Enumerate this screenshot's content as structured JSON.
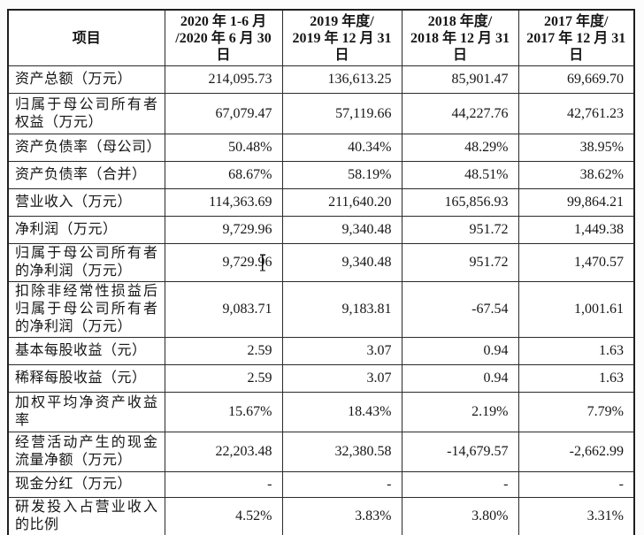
{
  "colors": {
    "page_background": "#fcfcfc",
    "table_background": "#ffffff",
    "border": "#2a2a2a",
    "text": "#161616"
  },
  "table": {
    "header": [
      "项目",
      "2020 年 1-6 月\n/2020 年 6 月 30\n日",
      "2019 年度/\n2019 年 12 月 31\n日",
      "2018 年度/\n2018 年 12 月 31\n日",
      "2017 年度/\n2017 年 12 月 31\n日"
    ],
    "rows": [
      {
        "label": "资产总额（万元）",
        "values": [
          "214,095.73",
          "136,613.25",
          "85,901.47",
          "69,669.70"
        ]
      },
      {
        "label": "归属于母公司所有者权益（万元）",
        "values": [
          "67,079.47",
          "57,119.66",
          "44,227.76",
          "42,761.23"
        ]
      },
      {
        "label": "资产负债率（母公司）",
        "values": [
          "50.48%",
          "40.34%",
          "48.29%",
          "38.95%"
        ]
      },
      {
        "label": "资产负债率（合并）",
        "values": [
          "68.67%",
          "58.19%",
          "48.51%",
          "38.62%"
        ]
      },
      {
        "label": "营业收入（万元）",
        "values": [
          "114,363.69",
          "211,640.20",
          "165,856.93",
          "99,864.21"
        ]
      },
      {
        "label": "净利润（万元）",
        "values": [
          "9,729.96",
          "9,340.48",
          "951.72",
          "1,449.38"
        ]
      },
      {
        "label": "归属于母公司所有者的净利润（万元）",
        "values": [
          "9,729.96",
          "9,340.48",
          "951.72",
          "1,470.57"
        ]
      },
      {
        "label": "扣除非经常性损益后归属于母公司所有者的净利润（万元）",
        "values": [
          "9,083.71",
          "9,183.81",
          "-67.54",
          "1,001.61"
        ]
      },
      {
        "label": "基本每股收益（元）",
        "values": [
          "2.59",
          "3.07",
          "0.94",
          "1.63"
        ]
      },
      {
        "label": "稀释每股收益（元）",
        "values": [
          "2.59",
          "3.07",
          "0.94",
          "1.63"
        ]
      },
      {
        "label": "加权平均净资产收益率",
        "values": [
          "15.67%",
          "18.43%",
          "2.19%",
          "7.79%"
        ]
      },
      {
        "label": "经营活动产生的现金流量净额（万元）",
        "values": [
          "22,203.48",
          "32,380.58",
          "-14,679.57",
          "-2,662.99"
        ]
      },
      {
        "label": "现金分红（万元）",
        "values": [
          "-",
          "-",
          "-",
          "-"
        ]
      },
      {
        "label": "研发投入占营业收入的比例",
        "values": [
          "4.52%",
          "3.83%",
          "3.80%",
          "3.31%"
        ]
      }
    ],
    "text_cursor": {
      "row_index": 6,
      "value_index": 0
    }
  }
}
